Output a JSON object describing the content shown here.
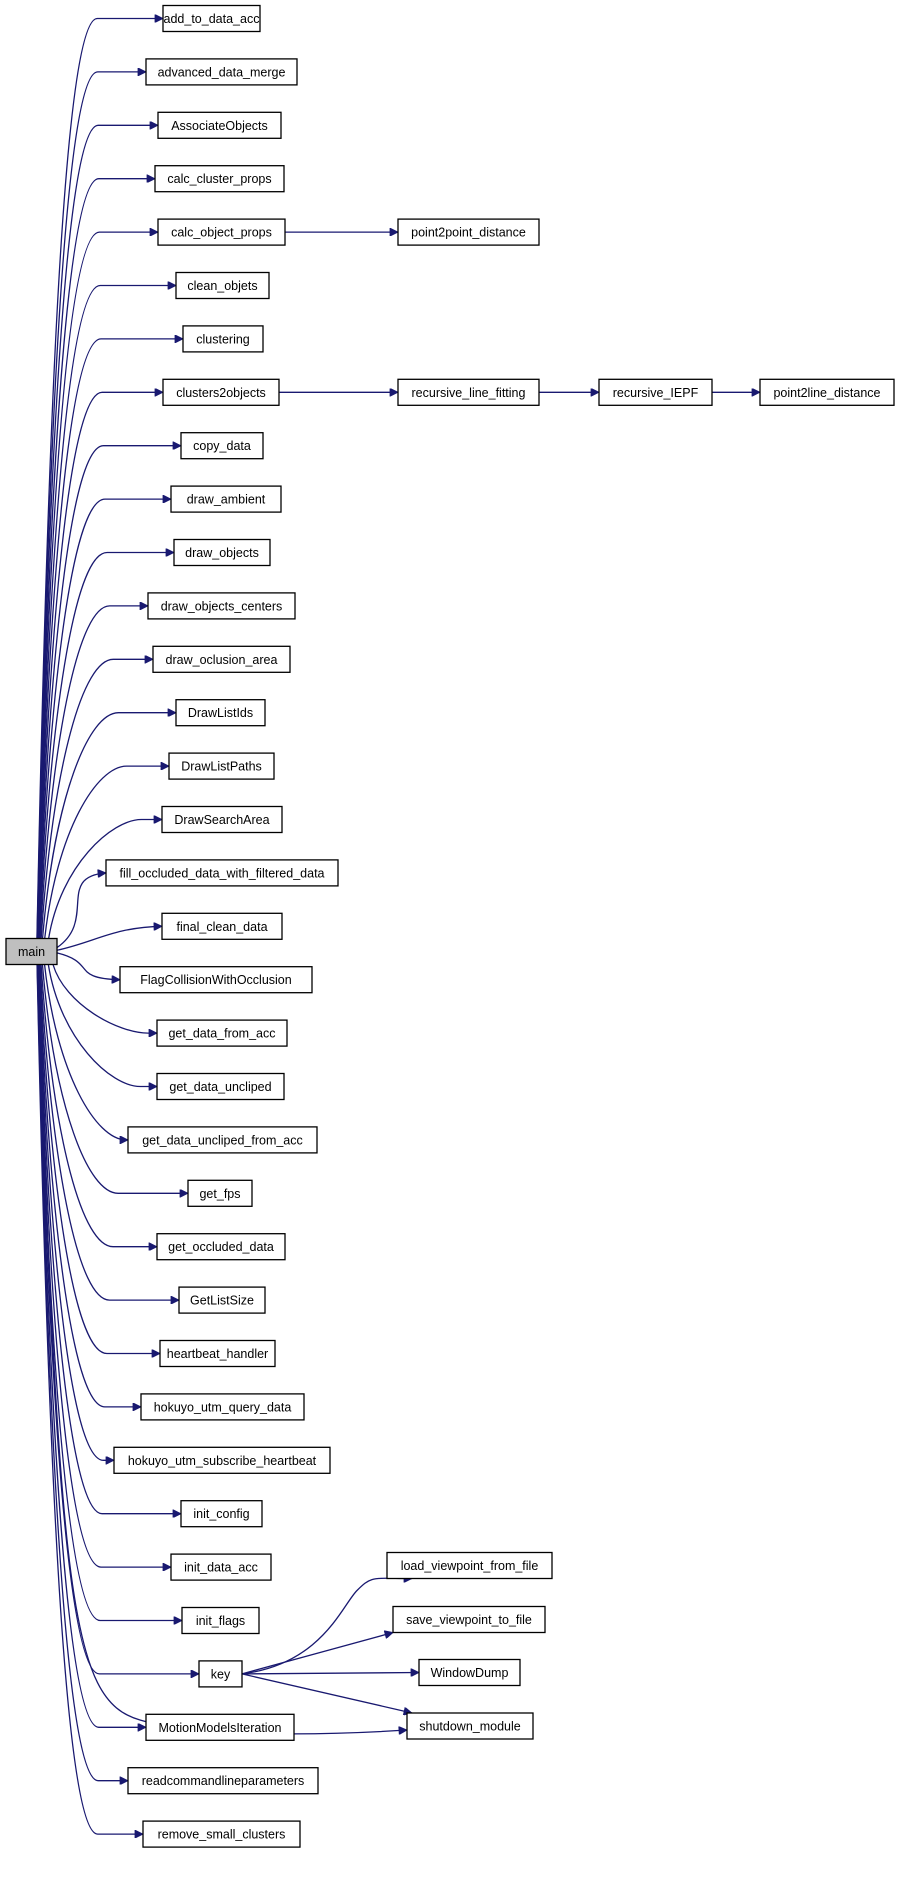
{
  "graph": {
    "root": "main",
    "callees": [
      "add_to_data_acc",
      "advanced_data_merge",
      "AssociateObjects",
      "calc_cluster_props",
      "calc_object_props",
      "clean_objets",
      "clustering",
      "clusters2objects",
      "copy_data",
      "draw_ambient",
      "draw_objects",
      "draw_objects_centers",
      "draw_oclusion_area",
      "DrawListIds",
      "DrawListPaths",
      "DrawSearchArea",
      "fill_occluded_data_with_filtered_data",
      "final_clean_data",
      "FlagCollisionWithOcclusion",
      "get_data_from_acc",
      "get_data_uncliped",
      "get_data_uncliped_from_acc",
      "get_fps",
      "get_occluded_data",
      "GetListSize",
      "heartbeat_handler",
      "hokuyo_utm_query_data",
      "hokuyo_utm_subscribe_heartbeat",
      "init_config",
      "init_data_acc",
      "init_flags",
      "key",
      "MotionModelsIteration",
      "readcommandlineparameters",
      "remove_small_clusters"
    ],
    "secondary": [
      "point2point_distance",
      "recursive_line_fitting",
      "recursive_IEPF",
      "point2line_distance",
      "load_viewpoint_from_file",
      "save_viewpoint_to_file",
      "WindowDump",
      "shutdown_module"
    ],
    "edges": [
      [
        "main",
        "add_to_data_acc"
      ],
      [
        "main",
        "advanced_data_merge"
      ],
      [
        "main",
        "AssociateObjects"
      ],
      [
        "main",
        "calc_cluster_props"
      ],
      [
        "main",
        "calc_object_props"
      ],
      [
        "main",
        "clean_objets"
      ],
      [
        "main",
        "clustering"
      ],
      [
        "main",
        "clusters2objects"
      ],
      [
        "main",
        "copy_data"
      ],
      [
        "main",
        "draw_ambient"
      ],
      [
        "main",
        "draw_objects"
      ],
      [
        "main",
        "draw_objects_centers"
      ],
      [
        "main",
        "draw_oclusion_area"
      ],
      [
        "main",
        "DrawListIds"
      ],
      [
        "main",
        "DrawListPaths"
      ],
      [
        "main",
        "DrawSearchArea"
      ],
      [
        "main",
        "fill_occluded_data_with_filtered_data"
      ],
      [
        "main",
        "final_clean_data"
      ],
      [
        "main",
        "FlagCollisionWithOcclusion"
      ],
      [
        "main",
        "get_data_from_acc"
      ],
      [
        "main",
        "get_data_uncliped"
      ],
      [
        "main",
        "get_data_uncliped_from_acc"
      ],
      [
        "main",
        "get_fps"
      ],
      [
        "main",
        "get_occluded_data"
      ],
      [
        "main",
        "GetListSize"
      ],
      [
        "main",
        "heartbeat_handler"
      ],
      [
        "main",
        "hokuyo_utm_query_data"
      ],
      [
        "main",
        "hokuyo_utm_subscribe_heartbeat"
      ],
      [
        "main",
        "init_config"
      ],
      [
        "main",
        "init_data_acc"
      ],
      [
        "main",
        "init_flags"
      ],
      [
        "main",
        "key"
      ],
      [
        "main",
        "shutdown_module"
      ],
      [
        "main",
        "MotionModelsIteration"
      ],
      [
        "main",
        "readcommandlineparameters"
      ],
      [
        "main",
        "remove_small_clusters"
      ],
      [
        "calc_object_props",
        "point2point_distance"
      ],
      [
        "clusters2objects",
        "recursive_line_fitting"
      ],
      [
        "recursive_line_fitting",
        "recursive_IEPF"
      ],
      [
        "recursive_IEPF",
        "point2line_distance"
      ],
      [
        "key",
        "load_viewpoint_from_file"
      ],
      [
        "key",
        "save_viewpoint_to_file"
      ],
      [
        "key",
        "WindowDump"
      ],
      [
        "key",
        "shutdown_module"
      ]
    ]
  },
  "colors": {
    "edge": "#191970",
    "root_fill": "#bfbfbf",
    "node_fill": "#ffffff",
    "node_border": "#000000"
  }
}
